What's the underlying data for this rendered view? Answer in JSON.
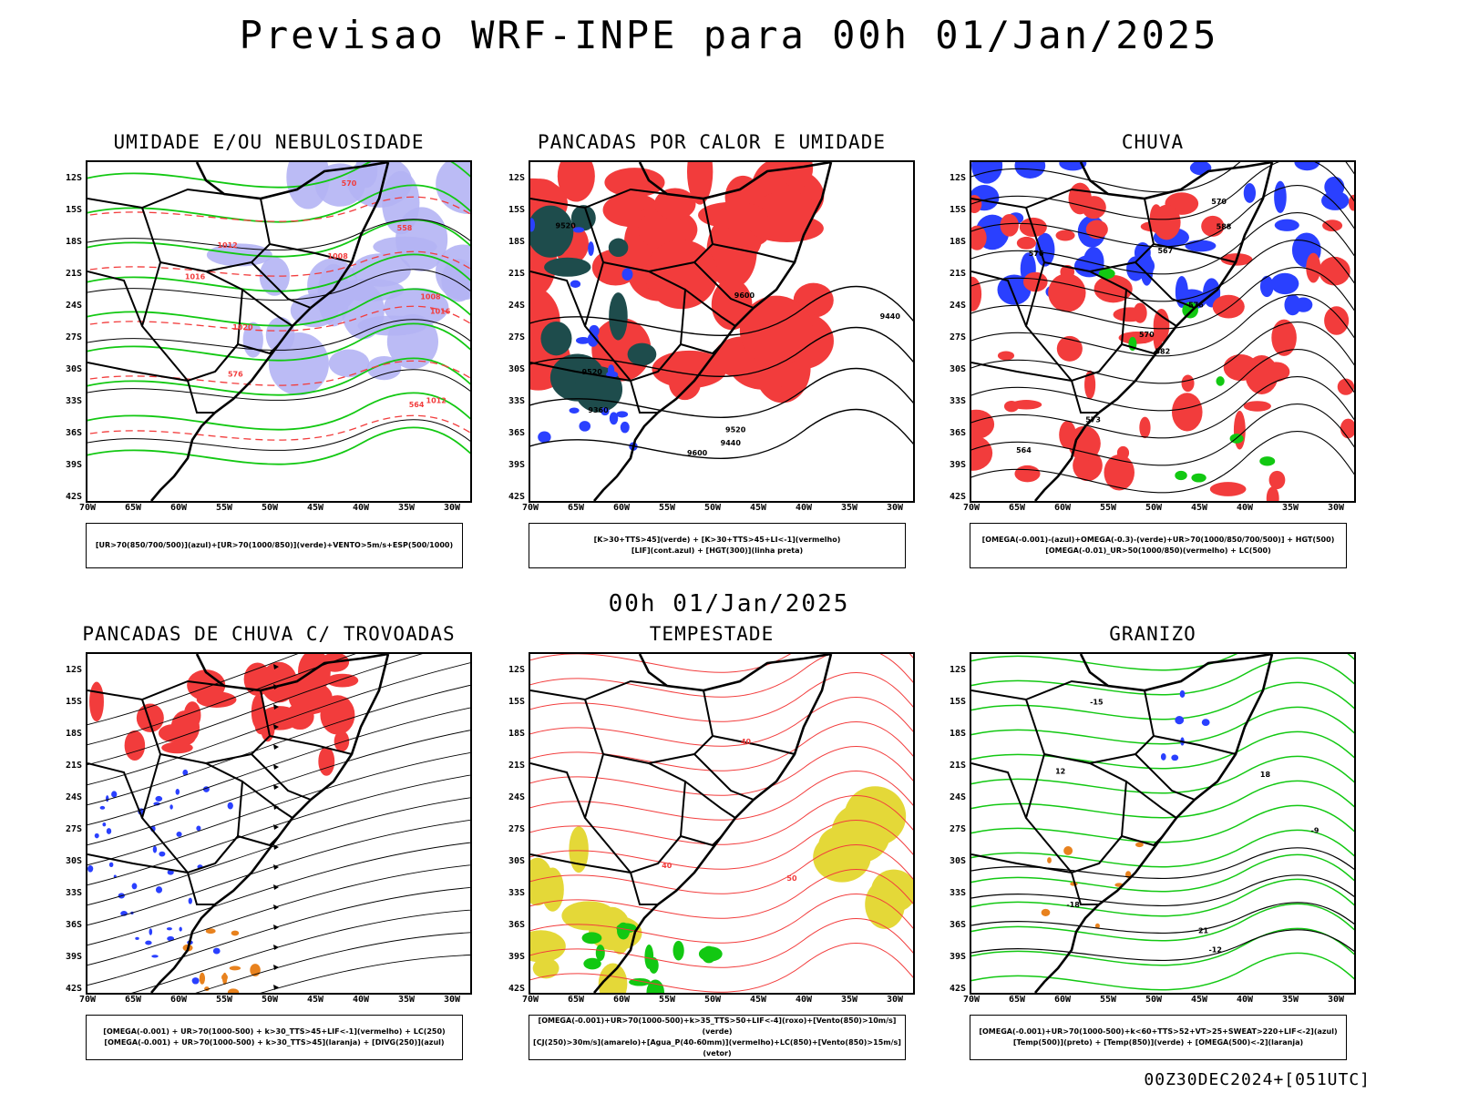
{
  "page": {
    "title": "Previsao WRF-INPE  para 00h 01/Jan/2025",
    "mid_title": "00h 01/Jan/2025",
    "footer": "00Z30DEC2024+[051UTC]"
  },
  "axes": {
    "lat_labels": [
      "12S",
      "15S",
      "18S",
      "21S",
      "24S",
      "27S",
      "30S",
      "33S",
      "36S",
      "39S",
      "42S"
    ],
    "lon_labels": [
      "70W",
      "65W",
      "60W",
      "55W",
      "50W",
      "45W",
      "40W",
      "35W",
      "30W"
    ]
  },
  "panels": [
    {
      "id": "umidade",
      "title": "UMIDADE E/OU NEBULOSIDADE",
      "legend": [
        "[UR>70(850/700/500)](azul)+[UR>70(1000/850)](verde)+VENTO>5m/s+ESP(500/1000)"
      ],
      "labels": [
        "1012",
        "1008",
        "1008",
        "1016",
        "1020",
        "1012",
        "576",
        "570",
        "564",
        "558",
        "1016"
      ]
    },
    {
      "id": "pancadas-calor",
      "title": "PANCADAS POR CALOR E UMIDADE",
      "legend": [
        "[K>30+TTS>45](verde) + [K>30+TTS>45+LI<-1](vermelho)",
        "[LIF](cont.azul) + [HGT(300)](linha preta)"
      ],
      "labels": [
        "9600",
        "9520",
        "9600",
        "9520",
        "9440",
        "9360",
        "9440",
        "9520"
      ]
    },
    {
      "id": "chuva",
      "title": "CHUVA",
      "legend": [
        "[OMEGA(-0.001)-(azul)+OMEGA(-0.3)-(verde)+UR>70(1000/850/700/500)] + HGT(500)",
        "[OMEGA(-0.01)_UR>50(1000/850)(vermelho) + LC(500)"
      ],
      "labels": [
        "582",
        "576",
        "570",
        "564",
        "576",
        "573",
        "570",
        "567",
        "588"
      ]
    },
    {
      "id": "pancadas-trovoadas",
      "title": "PANCADAS DE CHUVA C/ TROVOADAS",
      "legend": [
        "[OMEGA(-0.001) + UR>70(1000-500) + k>30_TTS>45+LIF<-1](vermelho) + LC(250)",
        "[OMEGA(-0.001) + UR>70(1000-500) + k>30_TTS>45](laranja) + [DIVG(250)](azul)"
      ],
      "labels": []
    },
    {
      "id": "tempestade",
      "title": "TEMPESTADE",
      "legend": [
        "[OMEGA(-0.001)+UR>70(1000-500)+k>35_TTS>50+LIF<-4](roxo)+[Vento(850)>10m/s](verde)",
        "[CJ(250)>30m/s](amarelo)+[Agua_P(40-60mm)](vermelho)+LC(850)+[Vento(850)>15m/s](vetor)"
      ],
      "labels": [
        "40",
        "50",
        "40"
      ]
    },
    {
      "id": "granizo",
      "title": "GRANIZO",
      "legend": [
        "[OMEGA(-0.001)+UR>70(1000-500)+k<60+TTS>52+VT>25+SWEAT>220+LIF<-2](azul)",
        "[Temp(500)](preto) + [Temp(850)](verde) + [OMEGA(500)<-2](laranja)"
      ],
      "labels": [
        "-12",
        "-15",
        "-18",
        "12",
        "18",
        "21",
        "-9"
      ]
    }
  ],
  "colors": {
    "red": "#f23c3c",
    "green": "#12c812",
    "blue": "#2a40ff",
    "lightblue": "#b4b4f4",
    "teal": "#1e4c4c",
    "yellow": "#e4d838",
    "orange": "#e8821e",
    "black": "#000000"
  }
}
